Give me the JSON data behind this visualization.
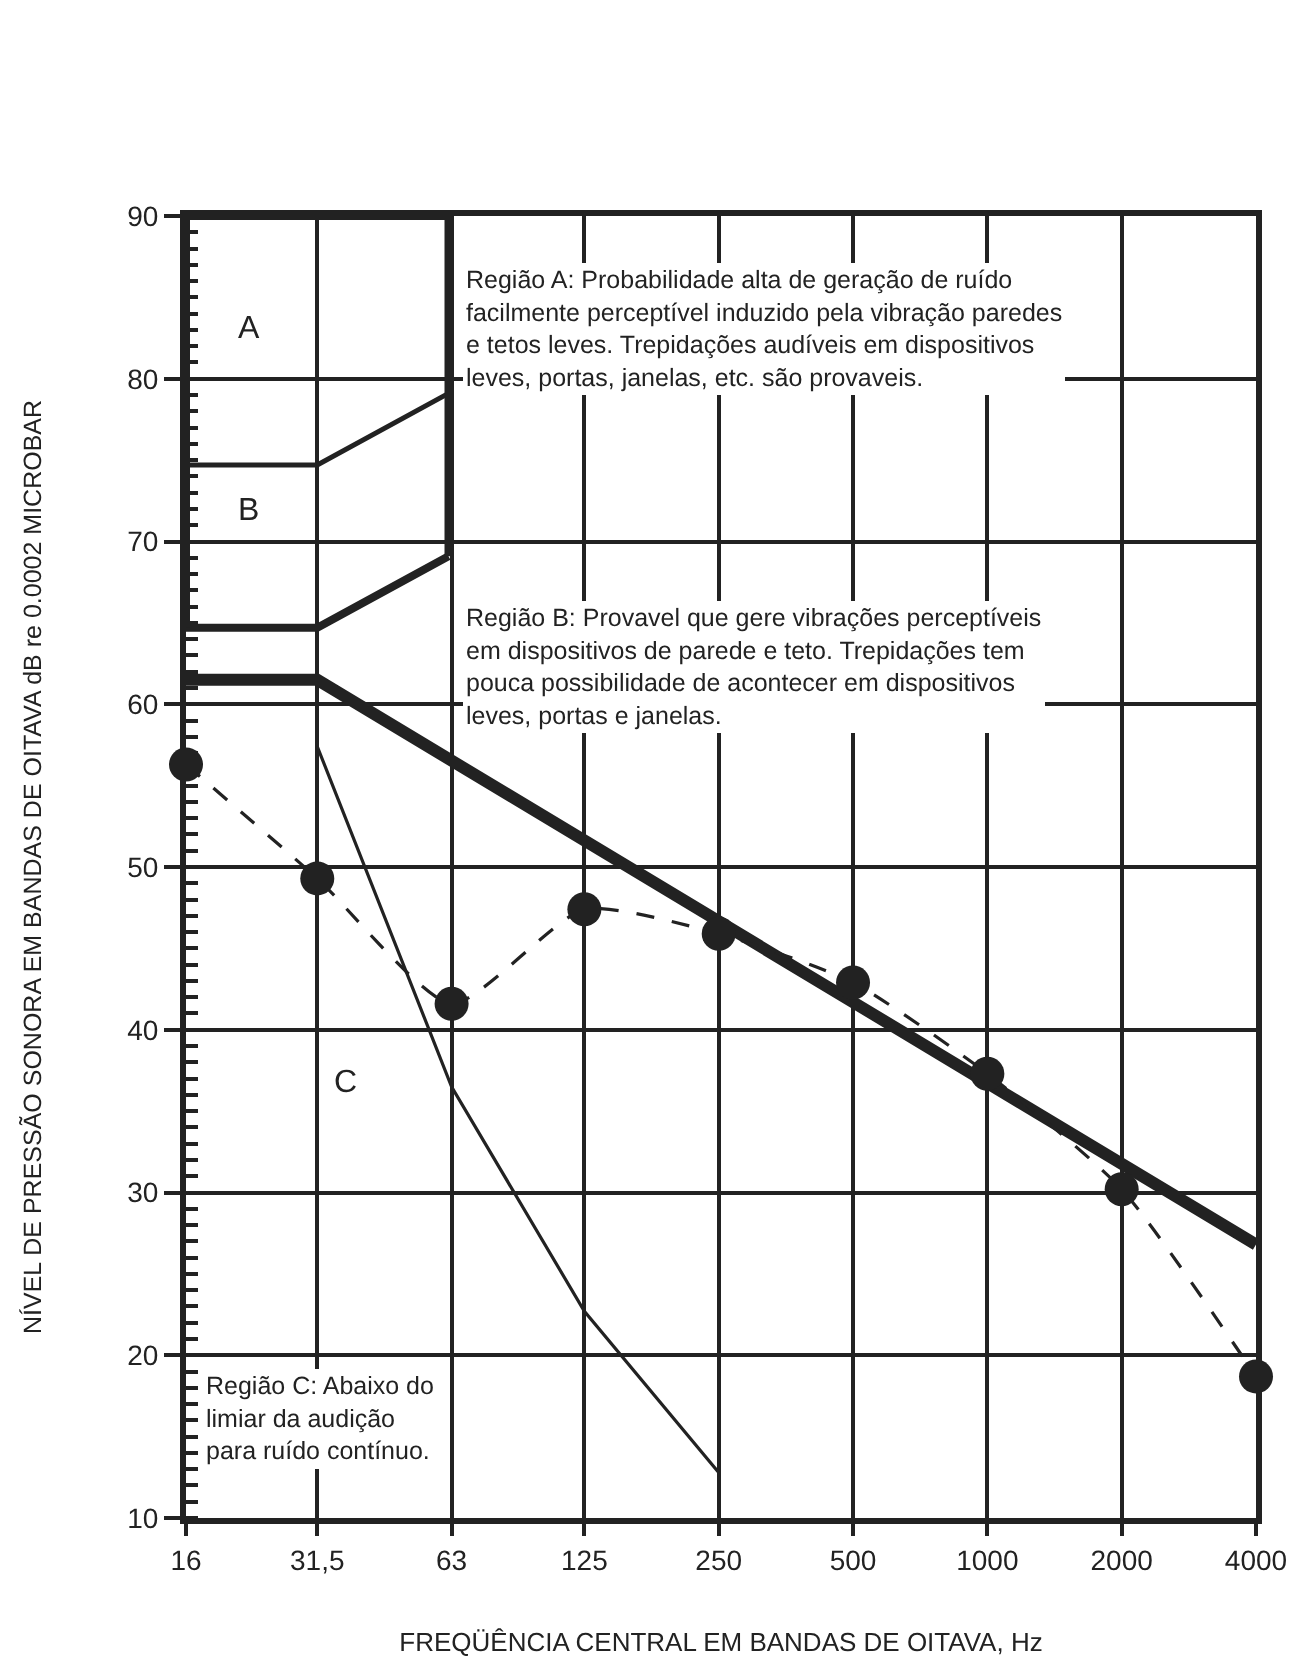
{
  "chart_data": {
    "type": "line",
    "xlabel": "FREQÜÊNCIA CENTRAL EM BANDAS DE OITAVA, Hz",
    "ylabel": "NÍVEL DE PRESSÃO SONORA EM BANDAS DE OITAVA dB re 0.0002 MICROBAR",
    "log": "x",
    "xlim": [
      16,
      4000
    ],
    "xticks": [
      16,
      {
        "value": 31.5,
        "label": "31,5"
      },
      63,
      125,
      250,
      500,
      1000,
      2000,
      4000
    ],
    "ylim": [
      10,
      90
    ],
    "yticks": [
      10,
      20,
      30,
      40,
      50,
      60,
      70,
      80,
      90
    ],
    "grid": true,
    "series": [
      {
        "color": "#222222",
        "line_style": "solid",
        "marker": "none",
        "x": [
          16,
          31.5,
          4000
        ],
        "values": [
          61.5,
          61.5,
          26.8
        ]
      },
      {
        "color": "#222222",
        "line_style": "dashed",
        "marker": "circle",
        "x": [
          16,
          31.5,
          63,
          125,
          250,
          500,
          1000,
          2000,
          4000
        ],
        "values": [
          56.3,
          49.3,
          41.6,
          47.4,
          45.9,
          42.9,
          37.3,
          30.2,
          18.7
        ]
      },
      {
        "color": "#222222",
        "line_style": "solid",
        "marker": "none",
        "x": [
          31.5,
          63,
          125,
          250
        ],
        "values": [
          57.4,
          36.5,
          22.7,
          12.8
        ]
      },
      {
        "color": "#222222",
        "line_style": "solid",
        "marker": "none",
        "x": [
          16,
          31.5,
          62
        ],
        "values": [
          64.7,
          64.7,
          69.1
        ]
      },
      {
        "color": "#222222",
        "line_style": "solid",
        "marker": "none",
        "x": [
          16,
          31.5,
          62
        ],
        "values": [
          74.7,
          74.7,
          79.1
        ]
      },
      {
        "color": "#222222",
        "line_style": "solid",
        "marker": "none",
        "x": [
          16,
          16
        ],
        "values": [
          64.7,
          90
        ]
      },
      {
        "color": "#222222",
        "line_style": "solid",
        "marker": "none",
        "x": [
          16,
          62
        ],
        "values": [
          90,
          90
        ]
      },
      {
        "color": "#222222",
        "line_style": "solid",
        "marker": "none",
        "x": [
          62,
          62
        ],
        "values": [
          90,
          69.1
        ]
      }
    ],
    "annotations": [
      "A",
      "B",
      "C",
      "Região A: Probabilidade alta de geração de ruído facilmente perceptível induzido pela vibração paredes e tetos leves. Trepidações audíveis em dispositivos leves, portas, janelas, etc. são provaveis.",
      "Região B: Provavel que gere vibrações perceptíveis em dispositivos de parede e teto. Trepidações tem pouca possibilidade de acontecer em dispositivos leves, portas e janelas.",
      "Região C: Abaixo do limiar da audição para ruído contínuo."
    ]
  }
}
